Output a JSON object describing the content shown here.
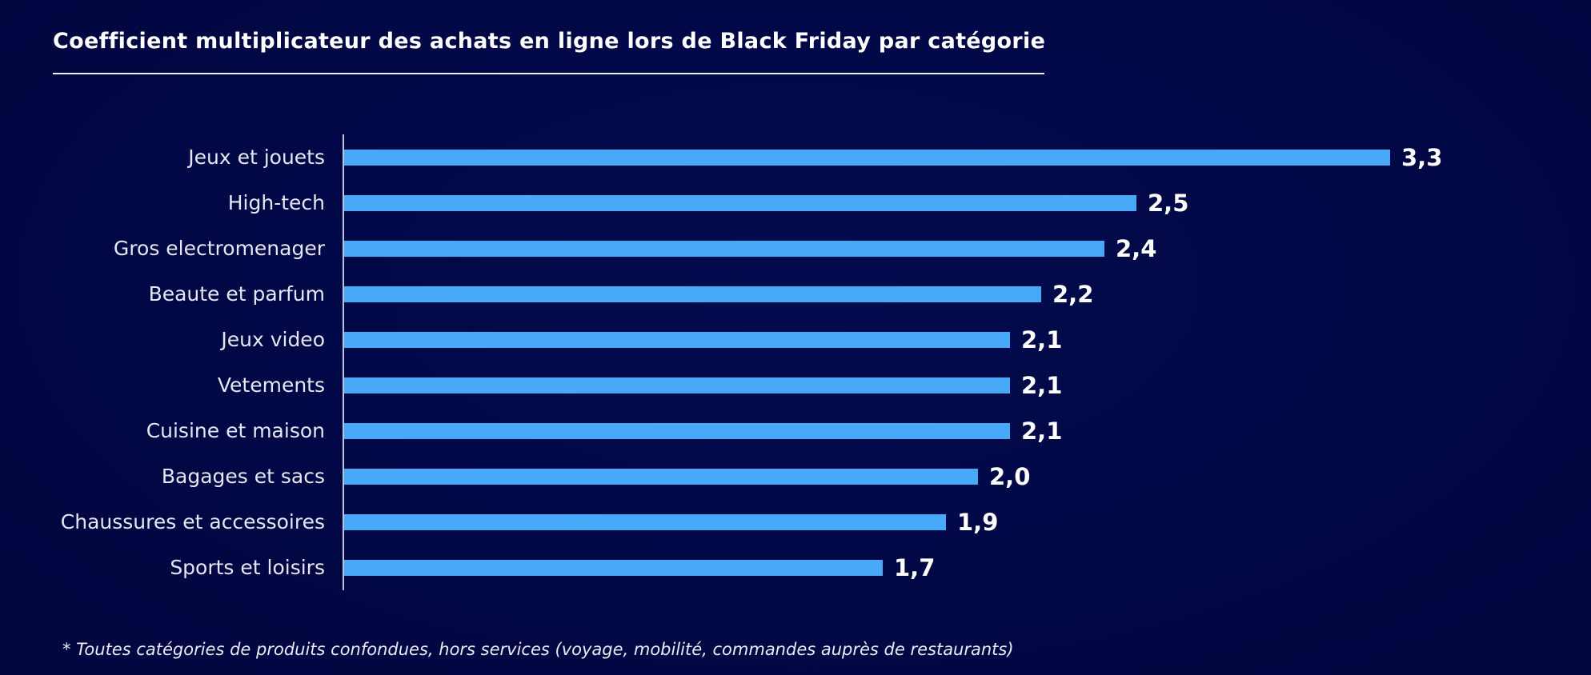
{
  "title": "Coefficient multiplicateur des achats en ligne lors de Black Friday par catégorie",
  "footnote": "* Toutes catégories de produits confondues, hors services (voyage, mobilité, commandes auprès de restaurants)",
  "chart_data": {
    "type": "bar",
    "orientation": "horizontal",
    "title": "Coefficient multiplicateur des achats en ligne lors de Black Friday par catégorie",
    "categories": [
      "Jeux et jouets",
      "High-tech",
      "Gros electromenager",
      "Beaute et parfum",
      "Jeux video",
      "Vetements",
      "Cuisine et maison",
      "Bagages et sacs",
      "Chaussures et accessoires",
      "Sports et loisirs"
    ],
    "values": [
      3.3,
      2.5,
      2.4,
      2.2,
      2.1,
      2.1,
      2.1,
      2.0,
      1.9,
      1.7
    ],
    "value_labels": [
      "3,3",
      "2,5",
      "2,4",
      "2,2",
      "2,1",
      "2,1",
      "2,1",
      "2,0",
      "1,9",
      "1,7"
    ],
    "xlim": [
      0,
      3.5
    ],
    "grid": false,
    "legend": false,
    "colors": {
      "bar": "#47a9f8",
      "background": "#020640",
      "axis_line": "#bfc3da",
      "category_label": "#e4e6f2",
      "value_label": "#ffffff",
      "title": "#ffffff"
    }
  }
}
